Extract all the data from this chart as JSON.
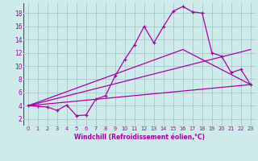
{
  "xlabel": "Windchill (Refroidissement éolien,°C)",
  "background_color": "#ceeaea",
  "grid_color": "#aacece",
  "line_color": "#aa00aa",
  "xlim": [
    -0.5,
    23.5
  ],
  "ylim": [
    1.0,
    19.5
  ],
  "xticks": [
    0,
    1,
    2,
    3,
    4,
    5,
    6,
    7,
    8,
    9,
    10,
    11,
    12,
    13,
    14,
    15,
    16,
    17,
    18,
    19,
    20,
    21,
    22,
    23
  ],
  "yticks": [
    2,
    4,
    6,
    8,
    10,
    12,
    14,
    16,
    18
  ],
  "main_x": [
    0,
    1,
    2,
    3,
    4,
    5,
    6,
    7,
    8,
    9,
    10,
    11,
    12,
    13,
    14,
    15,
    16,
    17,
    18,
    19,
    20,
    21,
    22,
    23
  ],
  "main_y": [
    4.0,
    3.9,
    3.8,
    3.3,
    4.1,
    2.5,
    2.6,
    5.0,
    5.5,
    8.5,
    11.0,
    13.2,
    16.0,
    13.5,
    16.0,
    18.3,
    19.0,
    18.2,
    18.0,
    12.0,
    11.5,
    9.0,
    9.5,
    7.2
  ],
  "line2_x": [
    0,
    23
  ],
  "line2_y": [
    4.0,
    7.2
  ],
  "line3_x": [
    0,
    16,
    23
  ],
  "line3_y": [
    4.0,
    12.5,
    7.2
  ],
  "line4_x": [
    0,
    23
  ],
  "line4_y": [
    4.0,
    12.5
  ]
}
